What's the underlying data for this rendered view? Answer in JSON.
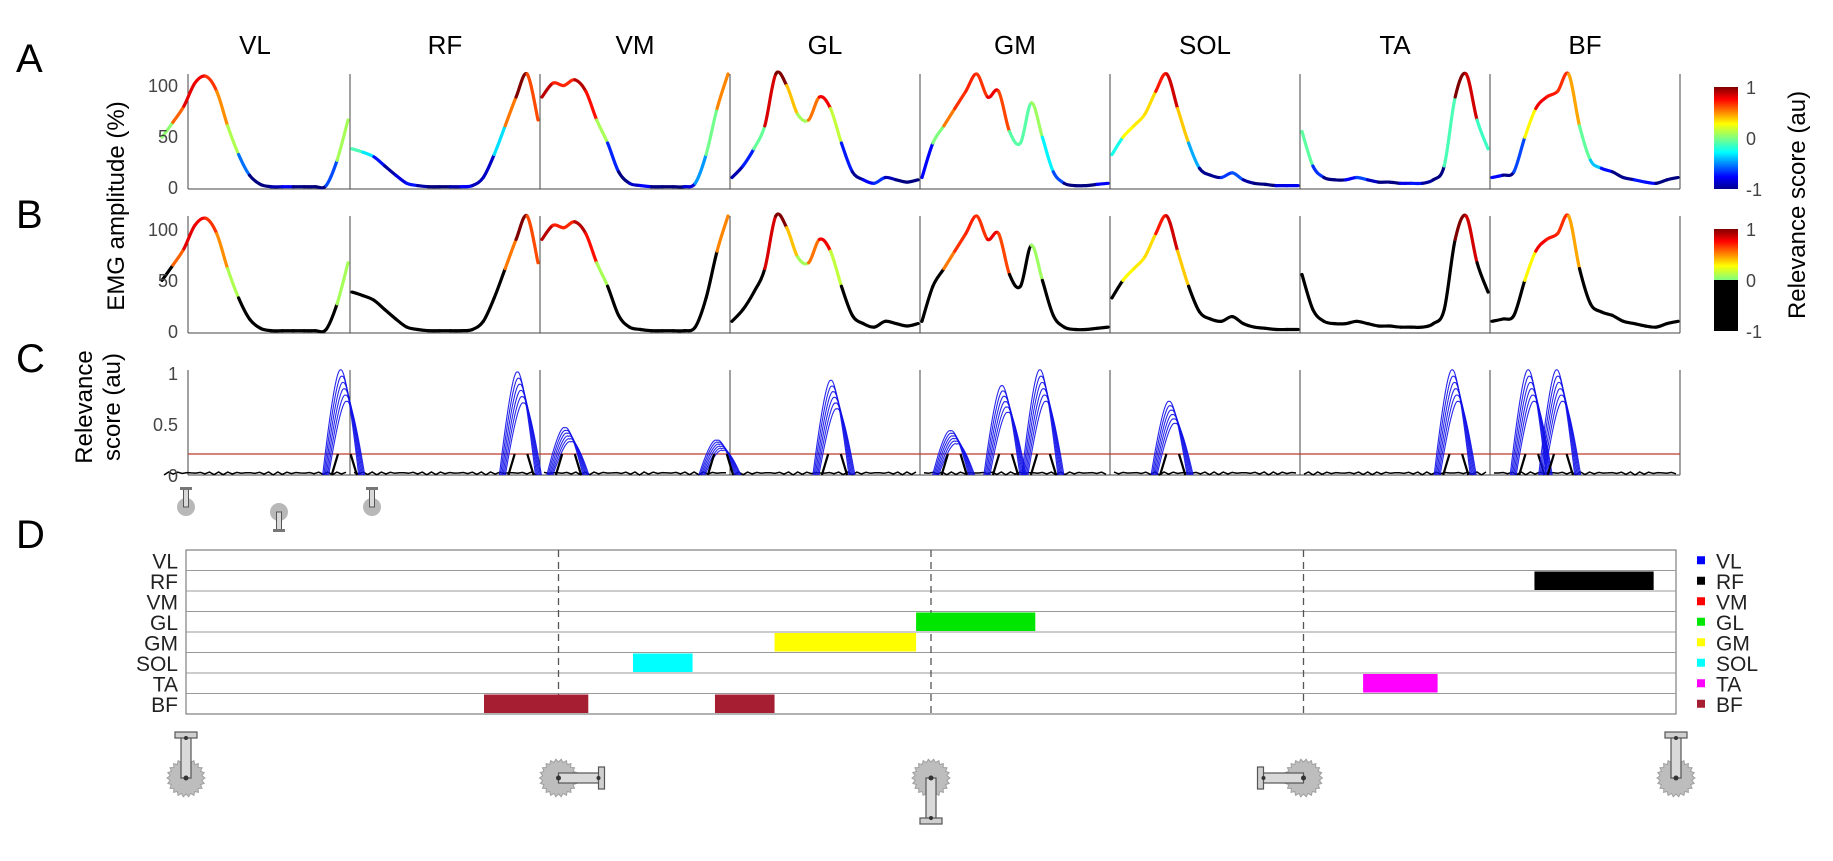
{
  "panels": {
    "a": "A",
    "b": "B",
    "c": "C",
    "d": "D"
  },
  "muscles": [
    "VL",
    "RF",
    "VM",
    "GL",
    "GM",
    "SOL",
    "TA",
    "BF"
  ],
  "y_label_ab": "EMG amplitude (%)",
  "y_label_c_line1": "Relevance",
  "y_label_c_line2": "score (au)",
  "ticks_ab": [
    "100",
    "50",
    "0"
  ],
  "ticks_c": [
    "1",
    "0.5",
    "0"
  ],
  "colorbar_label": "Relevance score (au)",
  "colorbar_ticks": [
    "1",
    "0",
    "-1"
  ],
  "legend": [
    {
      "name": "VL",
      "color": "#0000ff"
    },
    {
      "name": "RF",
      "color": "#000000"
    },
    {
      "name": "VM",
      "color": "#ff0000"
    },
    {
      "name": "GL",
      "color": "#00e600"
    },
    {
      "name": "GM",
      "color": "#ffff00"
    },
    {
      "name": "SOL",
      "color": "#00ffff"
    },
    {
      "name": "TA",
      "color": "#ff00ff"
    },
    {
      "name": "BF",
      "color": "#a51e32"
    }
  ],
  "chart_data": [
    {
      "panel": "A",
      "type": "line",
      "ylim": [
        0,
        100
      ],
      "series": [
        {
          "name": "VL",
          "values": [
            45,
            58,
            72,
            92,
            98,
            85,
            55,
            30,
            12,
            4,
            2,
            2,
            2,
            2,
            2,
            3,
            25,
            60
          ]
        },
        {
          "name": "RF",
          "values": [
            35,
            32,
            28,
            20,
            12,
            5,
            3,
            2,
            2,
            2,
            2,
            3,
            10,
            30,
            55,
            80,
            100,
            60
          ]
        },
        {
          "name": "VM",
          "values": [
            80,
            92,
            90,
            95,
            85,
            60,
            40,
            15,
            5,
            3,
            2,
            2,
            2,
            2,
            5,
            30,
            70,
            100
          ]
        },
        {
          "name": "GL",
          "values": [
            10,
            20,
            35,
            55,
            100,
            90,
            65,
            60,
            80,
            70,
            40,
            15,
            8,
            5,
            10,
            8,
            6,
            8
          ]
        },
        {
          "name": "GM",
          "values": [
            10,
            40,
            55,
            70,
            85,
            100,
            80,
            85,
            50,
            40,
            75,
            45,
            15,
            5,
            3,
            3,
            4,
            5
          ]
        },
        {
          "name": "SOL",
          "values": [
            30,
            45,
            55,
            65,
            85,
            100,
            70,
            40,
            18,
            12,
            10,
            14,
            8,
            5,
            4,
            3,
            3,
            3
          ]
        },
        {
          "name": "TA",
          "values": [
            50,
            20,
            10,
            8,
            8,
            10,
            8,
            6,
            6,
            5,
            5,
            5,
            8,
            20,
            80,
            100,
            60,
            35
          ]
        },
        {
          "name": "BF",
          "values": [
            10,
            12,
            15,
            45,
            70,
            80,
            85,
            100,
            55,
            25,
            18,
            15,
            10,
            8,
            6,
            5,
            8,
            10
          ]
        }
      ]
    },
    {
      "panel": "B",
      "type": "line",
      "ylim": [
        0,
        100
      ],
      "series": [
        {
          "name": "VL",
          "values": [
            45,
            58,
            72,
            92,
            98,
            85,
            55,
            30,
            12,
            4,
            2,
            2,
            2,
            2,
            2,
            3,
            25,
            60
          ]
        },
        {
          "name": "RF",
          "values": [
            35,
            32,
            28,
            20,
            12,
            5,
            3,
            2,
            2,
            2,
            2,
            3,
            10,
            30,
            55,
            80,
            100,
            60
          ]
        },
        {
          "name": "VM",
          "values": [
            80,
            92,
            90,
            95,
            85,
            60,
            40,
            15,
            5,
            3,
            2,
            2,
            2,
            2,
            5,
            30,
            70,
            100
          ]
        },
        {
          "name": "GL",
          "values": [
            10,
            20,
            35,
            55,
            100,
            90,
            65,
            60,
            80,
            70,
            40,
            15,
            8,
            5,
            10,
            8,
            6,
            8
          ]
        },
        {
          "name": "GM",
          "values": [
            10,
            40,
            55,
            70,
            85,
            100,
            80,
            85,
            50,
            40,
            75,
            45,
            15,
            5,
            3,
            3,
            4,
            5
          ]
        },
        {
          "name": "SOL",
          "values": [
            30,
            45,
            55,
            65,
            85,
            100,
            70,
            40,
            18,
            12,
            10,
            14,
            8,
            5,
            4,
            3,
            3,
            3
          ]
        },
        {
          "name": "TA",
          "values": [
            50,
            20,
            10,
            8,
            8,
            10,
            8,
            6,
            6,
            5,
            5,
            5,
            8,
            20,
            80,
            100,
            60,
            35
          ]
        },
        {
          "name": "BF",
          "values": [
            10,
            12,
            15,
            45,
            70,
            80,
            85,
            100,
            55,
            25,
            18,
            15,
            10,
            8,
            6,
            5,
            8,
            10
          ]
        }
      ]
    },
    {
      "panel": "C",
      "type": "line",
      "ylim": [
        0,
        1
      ],
      "threshold": 0.2,
      "peaks": [
        {
          "muscle": "VL",
          "phase": 0.97,
          "height": 1.0
        },
        {
          "muscle": "RF",
          "phase": 0.9,
          "height": 0.98
        },
        {
          "muscle": "VM",
          "phase": 0.15,
          "height": 0.45
        },
        {
          "muscle": "VM",
          "phase": 0.95,
          "height": 0.33
        },
        {
          "muscle": "GL",
          "phase": 0.55,
          "height": 0.9
        },
        {
          "muscle": "GM",
          "phase": 0.18,
          "height": 0.42
        },
        {
          "muscle": "GM",
          "phase": 0.45,
          "height": 0.85
        },
        {
          "muscle": "GM",
          "phase": 0.65,
          "height": 1.0
        },
        {
          "muscle": "SOL",
          "phase": 0.33,
          "height": 0.7
        },
        {
          "muscle": "TA",
          "phase": 0.82,
          "height": 1.0
        },
        {
          "muscle": "BF",
          "phase": 0.22,
          "height": 1.0
        },
        {
          "muscle": "BF",
          "phase": 0.37,
          "height": 1.0
        }
      ]
    },
    {
      "panel": "D",
      "type": "table",
      "rows": [
        "VL",
        "RF",
        "VM",
        "GL",
        "GM",
        "SOL",
        "TA",
        "BF"
      ],
      "xlim": [
        0,
        1
      ],
      "phase_dividers": [
        0.25,
        0.5,
        0.75
      ],
      "bars": [
        {
          "muscle": "RF",
          "start": 0.905,
          "end": 0.985,
          "color": "#000000"
        },
        {
          "muscle": "GL",
          "start": 0.49,
          "end": 0.57,
          "color": "#00e600"
        },
        {
          "muscle": "GM",
          "start": 0.395,
          "end": 0.49,
          "color": "#ffff00"
        },
        {
          "muscle": "SOL",
          "start": 0.3,
          "end": 0.34,
          "color": "#00ffff"
        },
        {
          "muscle": "TA",
          "start": 0.79,
          "end": 0.84,
          "color": "#ff00ff"
        },
        {
          "muscle": "BF",
          "start": 0.2,
          "end": 0.27,
          "color": "#a51e32"
        },
        {
          "muscle": "BF",
          "start": 0.355,
          "end": 0.395,
          "color": "#a51e32"
        }
      ]
    }
  ]
}
